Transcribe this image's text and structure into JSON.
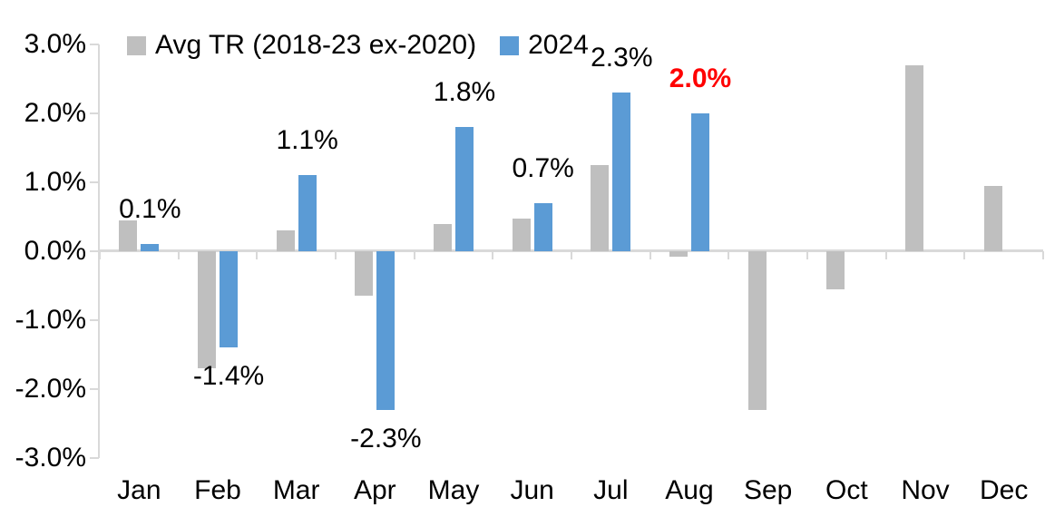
{
  "chart_data": {
    "type": "bar",
    "title": "",
    "categories": [
      "Jan",
      "Feb",
      "Mar",
      "Apr",
      "May",
      "Jun",
      "Jul",
      "Aug",
      "Sep",
      "Oct",
      "Nov",
      "Dec"
    ],
    "series": [
      {
        "name": "Avg TR (2018-23 ex-2020)",
        "color": "#BFBFBF",
        "values": [
          0.45,
          -1.7,
          0.3,
          -0.65,
          0.4,
          0.47,
          1.25,
          -0.08,
          -2.3,
          -0.55,
          2.7,
          0.95
        ]
      },
      {
        "name": "2024",
        "color": "#5B9BD5",
        "values": [
          0.1,
          -1.4,
          1.1,
          -2.3,
          1.8,
          0.7,
          2.3,
          2.0,
          null,
          null,
          null,
          null
        ]
      }
    ],
    "data_labels": [
      {
        "category": "Jan",
        "series": "2024",
        "text": "0.1%",
        "color": "#000000",
        "bold": false
      },
      {
        "category": "Feb",
        "series": "2024",
        "text": "-1.4%",
        "color": "#000000",
        "bold": false
      },
      {
        "category": "Mar",
        "series": "2024",
        "text": "1.1%",
        "color": "#000000",
        "bold": false
      },
      {
        "category": "Apr",
        "series": "2024",
        "text": "-2.3%",
        "color": "#000000",
        "bold": false
      },
      {
        "category": "May",
        "series": "2024",
        "text": "1.8%",
        "color": "#000000",
        "bold": false
      },
      {
        "category": "Jun",
        "series": "2024",
        "text": "0.7%",
        "color": "#000000",
        "bold": false
      },
      {
        "category": "Jul",
        "series": "2024",
        "text": "2.3%",
        "color": "#000000",
        "bold": false
      },
      {
        "category": "Aug",
        "series": "2024",
        "text": "2.0%",
        "color": "#FF0000",
        "bold": true
      }
    ],
    "y_axis": {
      "min": -3,
      "max": 3,
      "step": 1,
      "tick_labels": [
        "3.0%",
        "2.0%",
        "1.0%",
        "0.0%",
        "-1.0%",
        "-2.0%",
        "-3.0%"
      ]
    },
    "xlabel": "",
    "ylabel": "",
    "grid": false,
    "legend_position": "top",
    "axis_color": "#D9D9D9",
    "text_color": "#000000"
  }
}
